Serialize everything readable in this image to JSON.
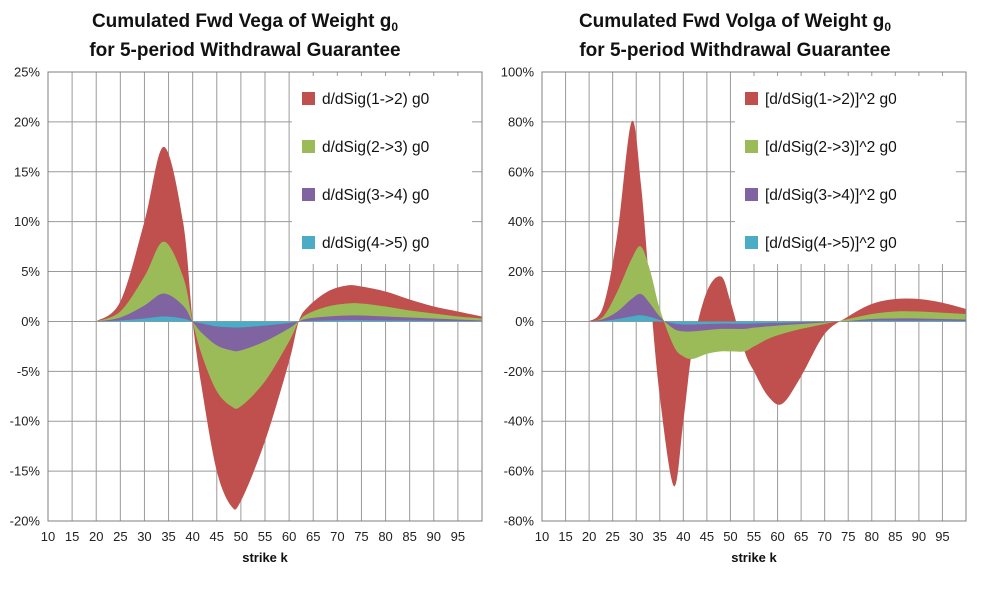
{
  "chart_data": [
    {
      "type": "area",
      "title_line1": "Cumulated Fwd Vega of Weight g",
      "title_subscript": "0",
      "title_line2": "for 5-period Withdrawal Guarantee",
      "xlabel": "strike k",
      "ylabel": "",
      "xlim": [
        10,
        100
      ],
      "xticks": [
        10,
        15,
        20,
        25,
        30,
        35,
        40,
        45,
        50,
        55,
        60,
        65,
        70,
        75,
        80,
        85,
        90,
        95
      ],
      "ylim": [
        -0.2,
        0.25
      ],
      "yticks": [
        -0.2,
        -0.15,
        -0.1,
        -0.05,
        0.0,
        0.05,
        0.1,
        0.15,
        0.2,
        0.25
      ],
      "ytick_labels": [
        "-20%",
        "-15%",
        "-10%",
        "-5%",
        "0%",
        "5%",
        "10%",
        "15%",
        "20%",
        "25%"
      ],
      "legend_position": "top-right",
      "x": [
        20,
        25,
        30,
        34,
        38,
        40,
        42,
        45,
        48,
        50,
        55,
        60,
        62,
        64,
        68,
        72,
        75,
        80,
        85,
        90,
        95,
        100
      ],
      "series": [
        {
          "name": "d/dSig(1->2) g0",
          "color": "#C0504D",
          "values": [
            0,
            0.02,
            0.1,
            0.175,
            0.1,
            0.0,
            -0.07,
            -0.15,
            -0.185,
            -0.18,
            -0.12,
            -0.04,
            0,
            0.015,
            0.03,
            0.036,
            0.035,
            0.03,
            0.022,
            0.015,
            0.01,
            0.005
          ]
        },
        {
          "name": "d/dSig(2->3) g0",
          "color": "#9BBB59",
          "values": [
            0,
            0.01,
            0.045,
            0.08,
            0.045,
            0.0,
            -0.035,
            -0.07,
            -0.085,
            -0.085,
            -0.06,
            -0.02,
            0,
            0.008,
            0.015,
            0.018,
            0.018,
            0.015,
            0.011,
            0.008,
            0.005,
            0.003
          ]
        },
        {
          "name": "d/dSig(3->4) g0",
          "color": "#8064A2",
          "values": [
            0,
            0.004,
            0.016,
            0.028,
            0.016,
            0.0,
            -0.012,
            -0.024,
            -0.029,
            -0.029,
            -0.02,
            -0.007,
            0,
            0.003,
            0.005,
            0.006,
            0.006,
            0.005,
            0.004,
            0.003,
            0.002,
            0.001
          ]
        },
        {
          "name": "d/dSig(4->5) g0",
          "color": "#4BACC6",
          "values": [
            0,
            0.001,
            0.003,
            0.005,
            0.003,
            0.0,
            -0.002,
            -0.005,
            -0.006,
            -0.006,
            -0.004,
            -0.0015,
            0,
            0.0005,
            0.001,
            0.0012,
            0.0012,
            0.001,
            0.0008,
            0.0006,
            0.0004,
            0.0002
          ]
        }
      ]
    },
    {
      "type": "area",
      "title_line1": "Cumulated Fwd Volga of Weight g",
      "title_subscript": "0",
      "title_line2": "for 5-period Withdrawal Guarantee",
      "xlabel": "strike k",
      "ylabel": "",
      "xlim": [
        10,
        100
      ],
      "xticks": [
        10,
        15,
        20,
        25,
        30,
        35,
        40,
        45,
        50,
        55,
        60,
        65,
        70,
        75,
        80,
        85,
        90,
        95
      ],
      "ylim": [
        -0.8,
        1.0
      ],
      "yticks": [
        -0.8,
        -0.6,
        -0.4,
        -0.2,
        0.0,
        0.2,
        0.4,
        0.6,
        0.8,
        1.0
      ],
      "ytick_labels": [
        "-80%",
        "-60%",
        "-40%",
        "-20%",
        "0%",
        "20%",
        "40%",
        "60%",
        "80%",
        "100%"
      ],
      "legend_position": "top-right",
      "x": [
        20,
        23,
        26,
        29,
        31,
        33,
        35,
        38,
        40,
        42,
        45,
        48,
        50,
        53,
        55,
        58,
        61,
        65,
        70,
        75,
        80,
        85,
        90,
        95,
        100
      ],
      "series": [
        {
          "name": "[d/dSig(1->2)]^2 g0",
          "color": "#C0504D",
          "values": [
            0,
            0.06,
            0.35,
            0.8,
            0.55,
            0.1,
            -0.3,
            -0.66,
            -0.4,
            -0.1,
            0.12,
            0.18,
            0.08,
            -0.12,
            -0.2,
            -0.3,
            -0.33,
            -0.22,
            -0.05,
            0.02,
            0.07,
            0.09,
            0.09,
            0.075,
            0.05
          ]
        },
        {
          "name": "[d/dSig(2->3)]^2 g0",
          "color": "#9BBB59",
          "values": [
            0,
            0.02,
            0.12,
            0.25,
            0.3,
            0.2,
            0.05,
            -0.1,
            -0.14,
            -0.15,
            -0.13,
            -0.12,
            -0.12,
            -0.12,
            -0.1,
            -0.07,
            -0.05,
            -0.03,
            -0.01,
            0.01,
            0.03,
            0.04,
            0.04,
            0.035,
            0.03
          ]
        },
        {
          "name": "[d/dSig(3->4)]^2 g0",
          "color": "#8064A2",
          "values": [
            0,
            0.01,
            0.04,
            0.09,
            0.11,
            0.07,
            0.02,
            -0.03,
            -0.04,
            -0.04,
            -0.035,
            -0.03,
            -0.03,
            -0.03,
            -0.025,
            -0.02,
            -0.015,
            -0.01,
            -0.004,
            0.002,
            0.01,
            0.012,
            0.012,
            0.01,
            0.008
          ]
        },
        {
          "name": "[d/dSig(4->5)]^2 g0",
          "color": "#4BACC6",
          "values": [
            0,
            0.002,
            0.01,
            0.02,
            0.025,
            0.018,
            0.006,
            -0.008,
            -0.012,
            -0.012,
            -0.01,
            -0.009,
            -0.009,
            -0.009,
            -0.008,
            -0.006,
            -0.005,
            -0.003,
            -0.001,
            0.001,
            0.003,
            0.003,
            0.003,
            0.003,
            0.002
          ]
        }
      ]
    }
  ]
}
